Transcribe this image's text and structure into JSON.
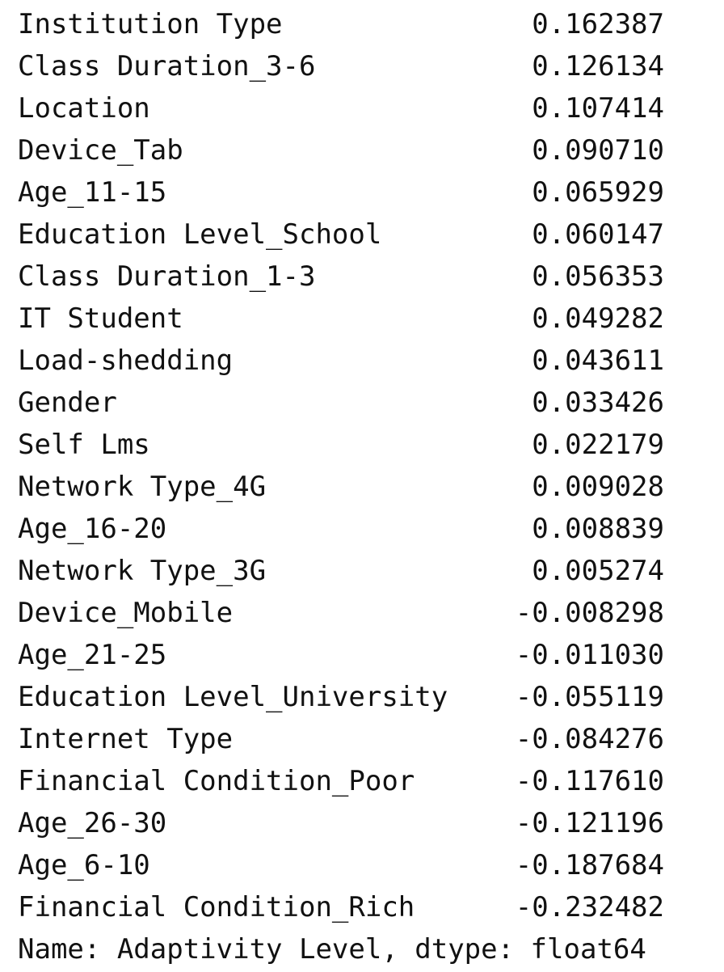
{
  "series": {
    "rows": [
      {
        "label": "Institution Type",
        "value": "0.162387"
      },
      {
        "label": "Class Duration_3-6",
        "value": "0.126134"
      },
      {
        "label": "Location",
        "value": "0.107414"
      },
      {
        "label": "Device_Tab",
        "value": "0.090710"
      },
      {
        "label": "Age_11-15",
        "value": "0.065929"
      },
      {
        "label": "Education Level_School",
        "value": "0.060147"
      },
      {
        "label": "Class Duration_1-3",
        "value": "0.056353"
      },
      {
        "label": "IT Student",
        "value": "0.049282"
      },
      {
        "label": "Load-shedding",
        "value": "0.043611"
      },
      {
        "label": "Gender",
        "value": "0.033426"
      },
      {
        "label": "Self Lms",
        "value": "0.022179"
      },
      {
        "label": "Network Type_4G",
        "value": "0.009028"
      },
      {
        "label": "Age_16-20",
        "value": "0.008839"
      },
      {
        "label": "Network Type_3G",
        "value": "0.005274"
      },
      {
        "label": "Device_Mobile",
        "value": "-0.008298"
      },
      {
        "label": "Age_21-25",
        "value": "-0.011030"
      },
      {
        "label": "Education Level_University",
        "value": "-0.055119"
      },
      {
        "label": "Internet Type",
        "value": "-0.084276"
      },
      {
        "label": "Financial Condition_Poor",
        "value": "-0.117610"
      },
      {
        "label": "Age_26-30",
        "value": "-0.121196"
      },
      {
        "label": "Age_6-10",
        "value": "-0.187684"
      },
      {
        "label": "Financial Condition_Rich",
        "value": "-0.232482"
      }
    ],
    "footer": "Name: Adaptivity Level, dtype: float64"
  }
}
